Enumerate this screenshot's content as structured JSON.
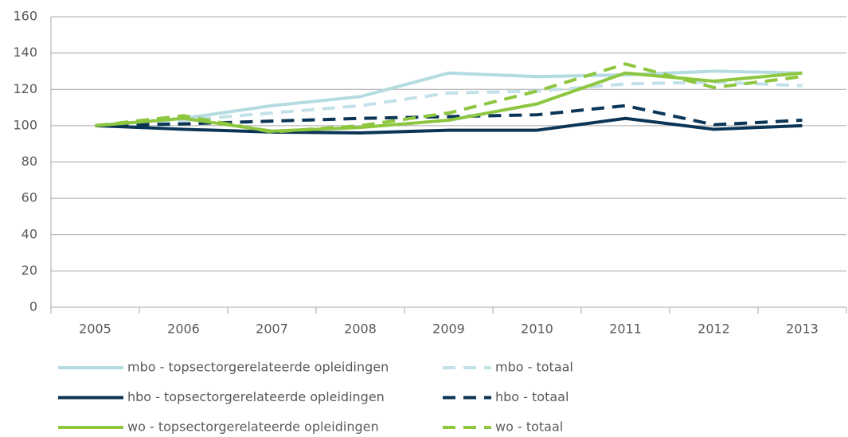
{
  "chart_data": {
    "type": "line",
    "categories": [
      "2005",
      "2006",
      "2007",
      "2008",
      "2009",
      "2010",
      "2011",
      "2012",
      "2013"
    ],
    "series": [
      {
        "name": "mbo - topsectorgerelateerde opleidingen",
        "color": "#b4dce0",
        "dashed": false,
        "values": [
          100,
          104,
          111,
          116,
          129,
          127,
          128,
          130,
          129
        ]
      },
      {
        "name": "mbo - totaal",
        "color": "#c3e1e8",
        "dashed": true,
        "values": [
          100,
          103,
          107,
          111,
          118,
          119,
          123,
          124,
          122
        ]
      },
      {
        "name": "hbo - topsectorgerelateerde opleidingen",
        "color": "#0b3556",
        "dashed": false,
        "values": [
          100,
          98,
          96.5,
          96,
          97.5,
          97.5,
          104,
          98,
          100
        ]
      },
      {
        "name": "hbo - totaal",
        "color": "#0b3556",
        "dashed": true,
        "values": [
          100,
          101,
          102.5,
          104,
          105,
          106,
          111,
          100.5,
          103
        ]
      },
      {
        "name": "wo - topsectorgerelateerde opleidingen",
        "color": "#8dc63f",
        "dashed": false,
        "values": [
          100,
          104,
          97,
          99,
          103,
          112,
          129,
          124.5,
          129
        ]
      },
      {
        "name": "wo - totaal",
        "color": "#8dc63f",
        "dashed": true,
        "values": [
          100,
          105.5,
          96.5,
          100,
          107,
          119,
          134,
          121,
          127
        ]
      }
    ],
    "ylim": [
      0,
      160
    ],
    "yticks": [
      0,
      20,
      40,
      60,
      80,
      100,
      120,
      140,
      160
    ],
    "grid": true
  }
}
